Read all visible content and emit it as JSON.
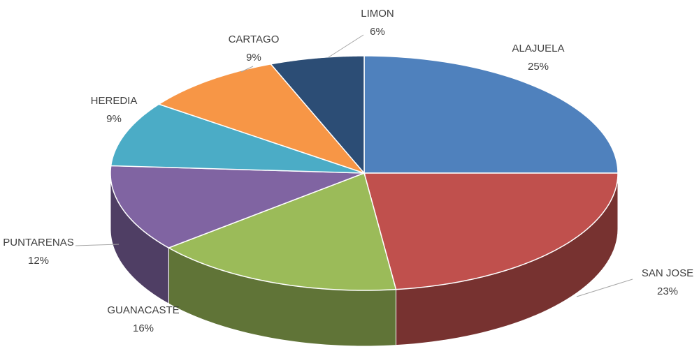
{
  "chart_data": {
    "type": "pie",
    "categories": [
      "ALAJUELA",
      "SAN JOSE",
      "GUANACASTE",
      "PUNTARENAS",
      "HEREDIA",
      "CARTAGO",
      "LIMON"
    ],
    "values": [
      25,
      23,
      16,
      12,
      9,
      9,
      6
    ],
    "value_labels": [
      "25%",
      "23%",
      "16%",
      "12%",
      "9%",
      "9%",
      "6%"
    ],
    "colors": [
      "#4f81bd",
      "#c0504d",
      "#9bbb59",
      "#8064a2",
      "#4bacc6",
      "#f79646",
      "#2c4d75"
    ]
  }
}
